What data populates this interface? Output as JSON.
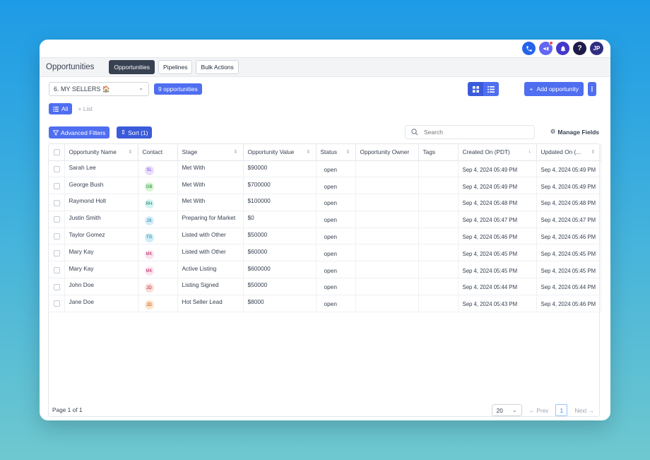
{
  "topbar": {
    "avatar_initials": "JP",
    "help_label": "?"
  },
  "header": {
    "title": "Opportunities",
    "tabs": [
      {
        "label": "Opportunities",
        "active": true
      },
      {
        "label": "Pipelines",
        "active": false
      },
      {
        "label": "Bulk Actions",
        "active": false
      }
    ]
  },
  "toolbar": {
    "pipeline_select": "6. MY SELLERS 🏠",
    "count_badge": "9 opportunities",
    "add_label": "Add opportunity",
    "all_label": "All",
    "list_label": "+ List",
    "advanced_filters_label": "Advanced Filters",
    "sort_label": "Sort (1)",
    "search_placeholder": "Search",
    "manage_fields_label": "Manage Fields"
  },
  "table": {
    "columns": [
      "Opportunity Name",
      "Contact",
      "Stage",
      "Opportunity Value",
      "Status",
      "Opportunity Owner",
      "Tags",
      "Created On (PDT)",
      "Updated On (..."
    ],
    "rows": [
      {
        "name": "Sarah Lee",
        "initials": "SL",
        "avatar_bg": "#e9ddfb",
        "avatar_fg": "#7c3aed",
        "stage": "Met With",
        "value": "$90000",
        "status": "open",
        "created": "Sep 4, 2024 05:49 PM",
        "updated": "Sep 4, 2024 05:49 PM"
      },
      {
        "name": "George Bush",
        "initials": "GB",
        "avatar_bg": "#d6f5d0",
        "avatar_fg": "#15803d",
        "stage": "Met With",
        "value": "$700000",
        "status": "open",
        "created": "Sep 4, 2024 05:49 PM",
        "updated": "Sep 4, 2024 05:49 PM"
      },
      {
        "name": "Raymond Holt",
        "initials": "RH",
        "avatar_bg": "#d2f4f0",
        "avatar_fg": "#0f766e",
        "stage": "Met With",
        "value": "$100000",
        "status": "open",
        "created": "Sep 4, 2024 05:48 PM",
        "updated": "Sep 4, 2024 05:48 PM"
      },
      {
        "name": "Justin Smith",
        "initials": "JS",
        "avatar_bg": "#d3eefb",
        "avatar_fg": "#0369a1",
        "stage": "Preparing for Market",
        "value": "$0",
        "status": "open",
        "created": "Sep 4, 2024 05:47 PM",
        "updated": "Sep 4, 2024 05:47 PM"
      },
      {
        "name": "Taylor Gomez",
        "initials": "TG",
        "avatar_bg": "#cdeef7",
        "avatar_fg": "#0e7490",
        "stage": "Listed with Other",
        "value": "$50000",
        "status": "open",
        "created": "Sep 4, 2024 05:46 PM",
        "updated": "Sep 4, 2024 05:46 PM"
      },
      {
        "name": "Mary Kay",
        "initials": "MK",
        "avatar_bg": "#fbe3ef",
        "avatar_fg": "#be185d",
        "stage": "Listed with Other",
        "value": "$60000",
        "status": "open",
        "created": "Sep 4, 2024 05:45 PM",
        "updated": "Sep 4, 2024 05:45 PM"
      },
      {
        "name": "Mary Kay",
        "initials": "MK",
        "avatar_bg": "#fbe3ef",
        "avatar_fg": "#be185d",
        "stage": "Active Listing",
        "value": "$600000",
        "status": "open",
        "created": "Sep 4, 2024 05:45 PM",
        "updated": "Sep 4, 2024 05:45 PM"
      },
      {
        "name": "John Doe",
        "initials": "JD",
        "avatar_bg": "#fbdcdc",
        "avatar_fg": "#b91c1c",
        "stage": "Listing Signed",
        "value": "$50000",
        "status": "open",
        "created": "Sep 4, 2024 05:44 PM",
        "updated": "Sep 4, 2024 05:44 PM"
      },
      {
        "name": "Jane Doe",
        "initials": "JD",
        "avatar_bg": "#fde4c8",
        "avatar_fg": "#c2410c",
        "stage": "Hot Seller Lead",
        "value": "$8000",
        "status": "open",
        "created": "Sep 4, 2024 05:43 PM",
        "updated": "Sep 4, 2024 05:46 PM"
      }
    ]
  },
  "footer": {
    "page_info": "Page 1 of 1",
    "per_page": "20",
    "prev_label": "Prev",
    "current_page": "1",
    "next_label": "Next"
  },
  "colors": {
    "accent": "#4f6ef0",
    "accent_dark": "#3b5bdb"
  }
}
